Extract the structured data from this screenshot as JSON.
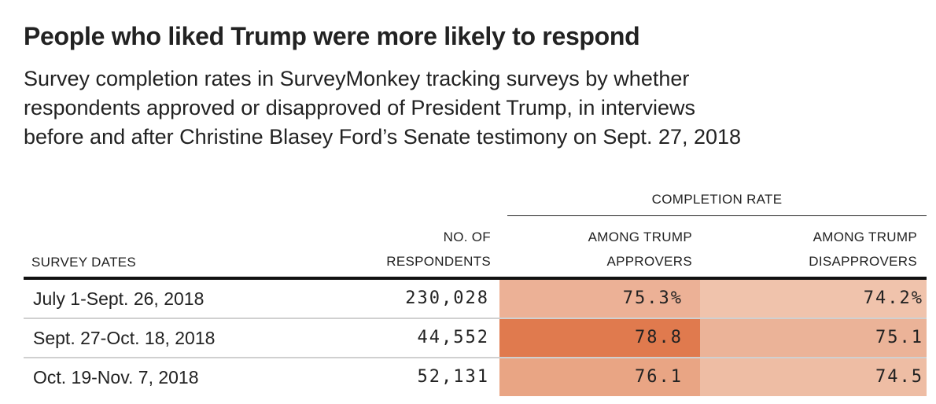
{
  "title": "People who liked Trump were more likely to respond",
  "subtitle": [
    "Survey completion rates in SurveyMonkey tracking surveys by whether",
    "respondents approved or disapproved of President Trump, in interviews",
    "before and after Christine Blasey Ford’s Senate testimony on Sept. 27, 2018"
  ],
  "chart_data": {
    "type": "table",
    "group_header": "COMPLETION RATE",
    "columns": [
      [
        "SURVEY DATES"
      ],
      [
        "NO. OF",
        "RESPONDENTS"
      ],
      [
        "AMONG TRUMP",
        "APPROVERS"
      ],
      [
        "AMONG TRUMP",
        "DISAPPROVERS"
      ]
    ],
    "rows": [
      {
        "dates": "July 1-Sept. 26, 2018",
        "respondents": "230,028",
        "approvers": "75.3%",
        "disapprovers": "74.2%",
        "approvers_value": 75.3,
        "disapprovers_value": 74.2,
        "approvers_color": "#ecb196",
        "disapprovers_color": "#f0c3ac"
      },
      {
        "dates": "Sept. 27-Oct. 18, 2018",
        "respondents": "44,552",
        "approvers": "78.8",
        "disapprovers": "75.1",
        "approvers_value": 78.8,
        "disapprovers_value": 75.1,
        "approvers_color": "#e07a4e",
        "disapprovers_color": "#ebb398"
      },
      {
        "dates": "Oct. 19-Nov. 7, 2018",
        "respondents": "52,131",
        "approvers": "76.1",
        "disapprovers": "74.5",
        "approvers_value": 76.1,
        "disapprovers_value": 74.5,
        "approvers_color": "#e9a584",
        "disapprovers_color": "#eebda4"
      }
    ]
  }
}
